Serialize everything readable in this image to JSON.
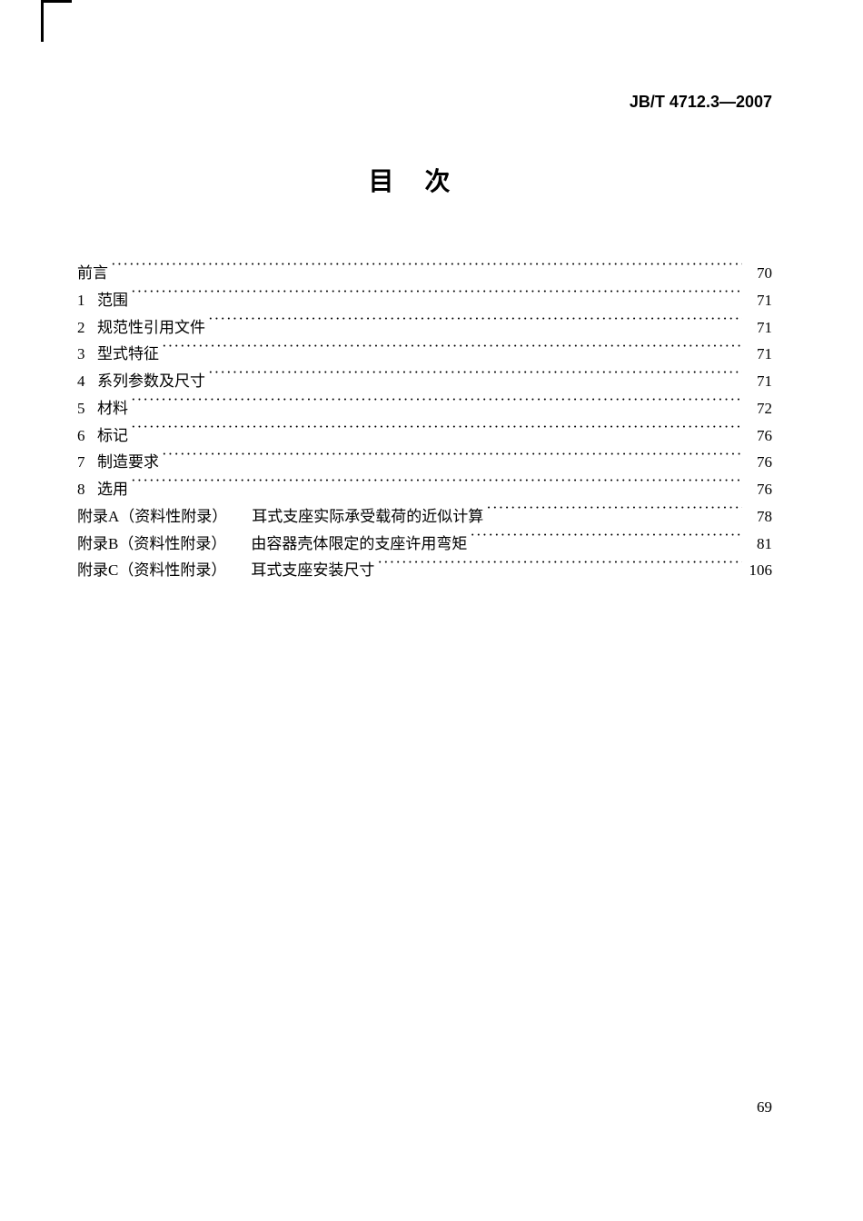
{
  "doc_number": "JB/T 4712.3—2007",
  "title": "目次",
  "page_number": "69",
  "toc": [
    {
      "num": "",
      "label": "前言",
      "page": "70"
    },
    {
      "num": "1",
      "label": "范围",
      "page": "71"
    },
    {
      "num": "2",
      "label": "规范性引用文件",
      "page": "71"
    },
    {
      "num": "3",
      "label": "型式特征",
      "page": "71"
    },
    {
      "num": "4",
      "label": "系列参数及尺寸",
      "page": "71"
    },
    {
      "num": "5",
      "label": "材料",
      "page": "72"
    },
    {
      "num": "6",
      "label": "标记",
      "page": "76"
    },
    {
      "num": "7",
      "label": "制造要求",
      "page": "76"
    },
    {
      "num": "8",
      "label": "选用",
      "page": "76"
    },
    {
      "num": "附录A（资料性附录）",
      "label": "　耳式支座实际承受载荷的近似计算",
      "page": "78"
    },
    {
      "num": "附录B（资料性附录）",
      "label": "　由容器壳体限定的支座许用弯矩",
      "page": "81"
    },
    {
      "num": "附录C（资料性附录）",
      "label": "　耳式支座安装尺寸",
      "page": "106"
    }
  ]
}
